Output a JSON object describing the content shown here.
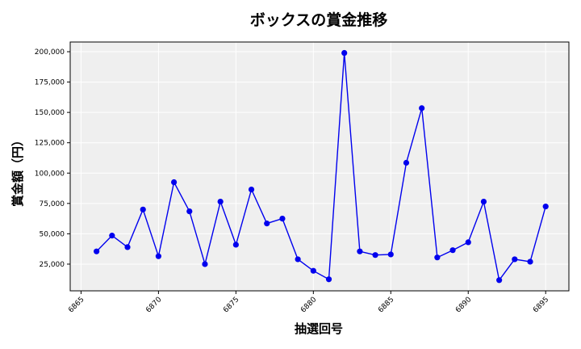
{
  "chart_data": {
    "type": "line",
    "title": "ボックスの賞金推移",
    "xlabel": "抽選回号",
    "ylabel": "賞金額（円）",
    "xlim": [
      6864.3,
      6896.5
    ],
    "ylim": [
      3000,
      208000
    ],
    "xticks": [
      6865,
      6870,
      6875,
      6880,
      6885,
      6890,
      6895
    ],
    "xtick_labels": [
      "6865",
      "6870",
      "6875",
      "6880",
      "6885",
      "6890",
      "6895"
    ],
    "yticks": [
      25000,
      50000,
      75000,
      100000,
      125000,
      150000,
      175000,
      200000
    ],
    "ytick_labels": [
      "25,000",
      "50,000",
      "75,000",
      "100,000",
      "125,000",
      "150,000",
      "175,000",
      "200,000"
    ],
    "grid": true,
    "line_color": "#0000ee",
    "marker_color": "#0000ee",
    "plot_background": "#efefef",
    "series": [
      {
        "x": [
          6866,
          6867,
          6868,
          6869,
          6870,
          6871,
          6872,
          6873,
          6874,
          6875,
          6876,
          6877,
          6878,
          6879,
          6880,
          6881,
          6882,
          6883,
          6884,
          6885,
          6886,
          6887,
          6888,
          6889,
          6890,
          6891,
          6892,
          6893,
          6894,
          6895
        ],
        "values": [
          35500,
          48500,
          39000,
          70000,
          31500,
          92500,
          68500,
          25000,
          76500,
          41000,
          86500,
          58500,
          62500,
          29000,
          19500,
          12500,
          199000,
          35500,
          32500,
          33000,
          108500,
          153500,
          30500,
          36500,
          43000,
          76500,
          11800,
          29000,
          27000,
          72500
        ]
      }
    ]
  }
}
